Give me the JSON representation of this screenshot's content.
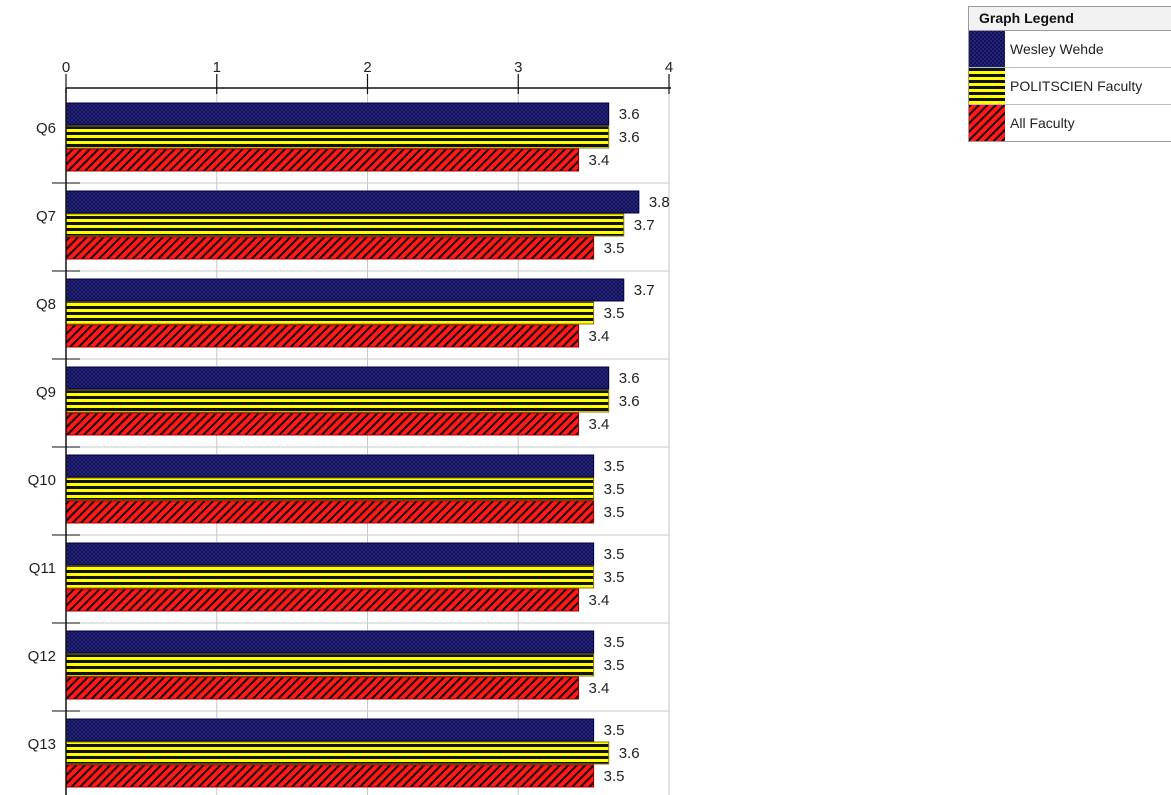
{
  "legend": {
    "title": "Graph Legend",
    "items": [
      {
        "label": "Wesley Wehde",
        "pattern": "crosshatch-navy",
        "color": "#0a0a55"
      },
      {
        "label": "POLITSCIEN Faculty",
        "pattern": "horizontal-stripes-yellow-black",
        "color": "#ffff00"
      },
      {
        "label": "All Faculty",
        "pattern": "diagonal-stripes-red-black",
        "color": "#ff1a1a"
      }
    ]
  },
  "chart_data": {
    "type": "bar",
    "orientation": "horizontal",
    "categories": [
      "Q6",
      "Q7",
      "Q8",
      "Q9",
      "Q10",
      "Q11",
      "Q12",
      "Q13"
    ],
    "series": [
      {
        "name": "Wesley Wehde",
        "values": [
          3.6,
          3.8,
          3.7,
          3.6,
          3.5,
          3.5,
          3.5,
          3.5
        ],
        "color": "#0a0a55"
      },
      {
        "name": "POLITSCIEN Faculty",
        "values": [
          3.6,
          3.7,
          3.5,
          3.6,
          3.5,
          3.5,
          3.5,
          3.6
        ],
        "color": "#ffff00"
      },
      {
        "name": "All Faculty",
        "values": [
          3.4,
          3.5,
          3.4,
          3.4,
          3.5,
          3.4,
          3.4,
          3.5
        ],
        "color": "#ff1a1a"
      }
    ],
    "x_ticks": [
      0,
      1,
      2,
      3,
      4
    ],
    "xlim": [
      0,
      4
    ],
    "x_axis_position": "top",
    "grid": true,
    "data_labels": true,
    "legend_position": "top-right"
  }
}
